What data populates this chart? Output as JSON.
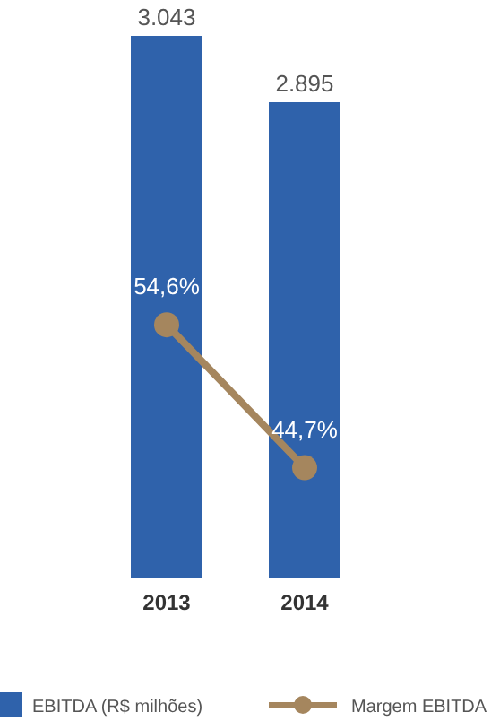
{
  "chart_data": {
    "type": "bar",
    "categories": [
      "2013",
      "2014"
    ],
    "series": [
      {
        "name": "EBITDA (R$ milhões)",
        "color": "#2f62ab",
        "values": [
          3043,
          2895
        ],
        "value_labels": [
          "3.043",
          "2.895"
        ]
      },
      {
        "name": "Margem EBITDA",
        "type": "line",
        "axis": "y2",
        "color": "#a5865e",
        "marker": "circle",
        "values": [
          54.6,
          44.7
        ],
        "value_labels": [
          "54,6%",
          "44,7%"
        ]
      }
    ],
    "ylim": [
      1835,
      3043
    ],
    "y2lim": [
      37.1,
      74.6
    ],
    "legend": "bottom",
    "tick_labels": "x"
  }
}
